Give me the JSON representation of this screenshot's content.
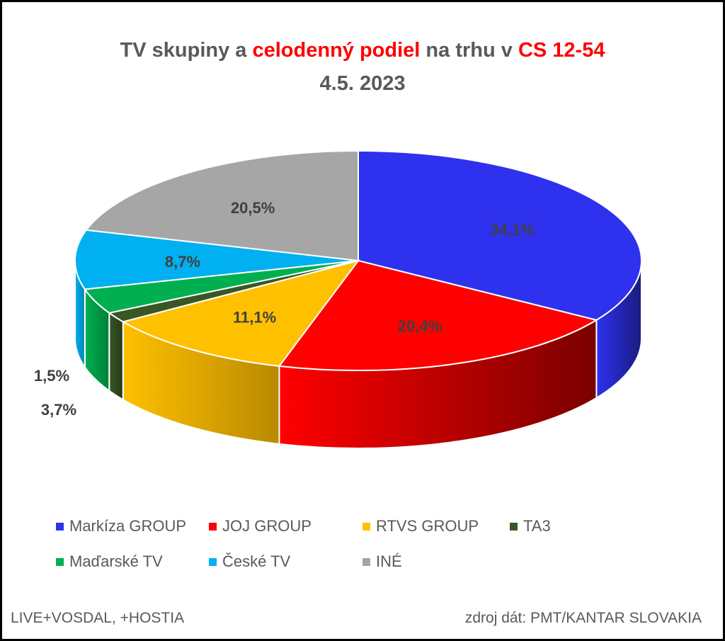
{
  "title": {
    "part1": "TV skupiny a ",
    "part2": "celodenný podiel",
    "part3": " na trhu v ",
    "part4": "CS 12-54",
    "date": "4.5. 2023"
  },
  "chart_data": {
    "type": "pie",
    "style": "3d",
    "title": "TV skupiny a celodenný podiel na trhu v CS 12-54",
    "subtitle": "4.5. 2023",
    "categories": [
      "Markíza GROUP",
      "JOJ GROUP",
      "RTVS GROUP",
      "TA3",
      "Maďarské  TV",
      "České  TV",
      "INÉ"
    ],
    "values": [
      34.1,
      20.4,
      11.1,
      1.5,
      3.7,
      8.7,
      20.5
    ],
    "value_labels": [
      "34,1%",
      "20,4%",
      "11,1%",
      "1,5%",
      "3,7%",
      "8,7%",
      "20,5%"
    ],
    "colors": [
      "#2e31ee",
      "#ff0000",
      "#ffc000",
      "#385723",
      "#00b050",
      "#00b0f0",
      "#a6a6a6"
    ],
    "side_colors": [
      "#1a1c7e",
      "#7a0000",
      "#b98a00",
      "#233a18",
      "#00803a",
      "#0080b0",
      "#777777"
    ],
    "legend_position": "bottom",
    "unit": "%"
  },
  "footer": {
    "left": "LIVE+VOSDAL,  +HOSTIA",
    "right": "zdroj dát: PMT/KANTAR SLOVAKIA"
  }
}
